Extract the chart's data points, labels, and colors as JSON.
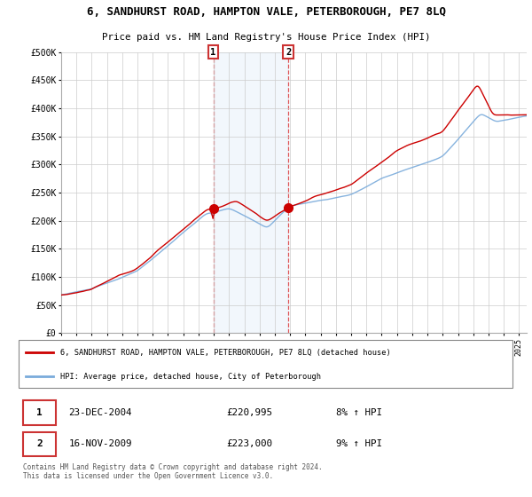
{
  "title": "6, SANDHURST ROAD, HAMPTON VALE, PETERBOROUGH, PE7 8LQ",
  "subtitle": "Price paid vs. HM Land Registry's House Price Index (HPI)",
  "ylim": [
    0,
    500000
  ],
  "yticks": [
    0,
    50000,
    100000,
    150000,
    200000,
    250000,
    300000,
    350000,
    400000,
    450000,
    500000
  ],
  "ytick_labels": [
    "£0",
    "£50K",
    "£100K",
    "£150K",
    "£200K",
    "£250K",
    "£300K",
    "£350K",
    "£400K",
    "£450K",
    "£500K"
  ],
  "red_line_color": "#cc0000",
  "blue_line_color": "#7aabdb",
  "background_color": "#ffffff",
  "plot_bg_color": "#ffffff",
  "grid_color": "#cccccc",
  "highlight_bg_color": "#ddeeff",
  "marker1_x": 2004.97,
  "marker1_y": 220995,
  "marker2_x": 2009.88,
  "marker2_y": 223000,
  "marker1_date": "23-DEC-2004",
  "marker1_price": "£220,995",
  "marker1_hpi": "8% ↑ HPI",
  "marker2_date": "16-NOV-2009",
  "marker2_price": "£223,000",
  "marker2_hpi": "9% ↑ HPI",
  "legend_line1": "6, SANDHURST ROAD, HAMPTON VALE, PETERBOROUGH, PE7 8LQ (detached house)",
  "legend_line2": "HPI: Average price, detached house, City of Peterborough",
  "footer": "Contains HM Land Registry data © Crown copyright and database right 2024.\nThis data is licensed under the Open Government Licence v3.0.",
  "xmin": 1995,
  "xmax": 2025.5
}
